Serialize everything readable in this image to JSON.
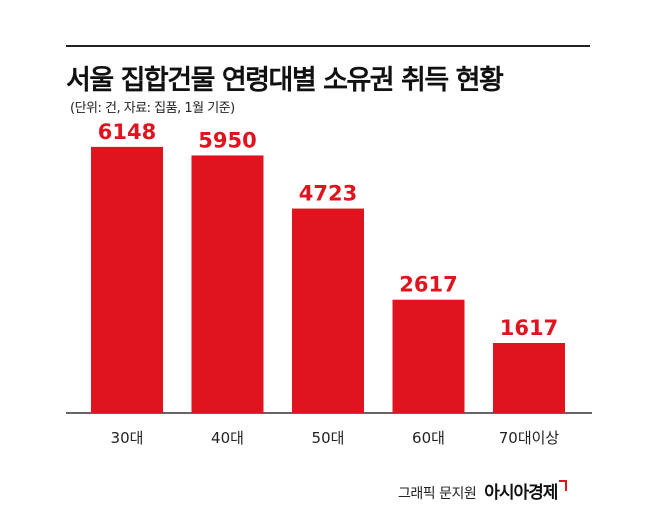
{
  "chart_data": {
    "type": "bar",
    "title": "서울 집합건물 연령대별 소유권 취득 현황",
    "subtitle": "(단위: 건, 자료: 집품, 1월 기준)",
    "categories": [
      "30대",
      "40대",
      "50대",
      "60대",
      "70대이상"
    ],
    "values": [
      6148,
      5950,
      4723,
      2617,
      1617
    ],
    "value_labels": [
      "6148",
      "5950",
      "4723",
      "2617",
      "1617"
    ],
    "ylim": [
      0,
      7000
    ],
    "grid": false,
    "legend": "none",
    "bar_color": "#e0141e"
  },
  "credit": {
    "text": "그래픽 문지원",
    "brand": "아시아경제"
  }
}
